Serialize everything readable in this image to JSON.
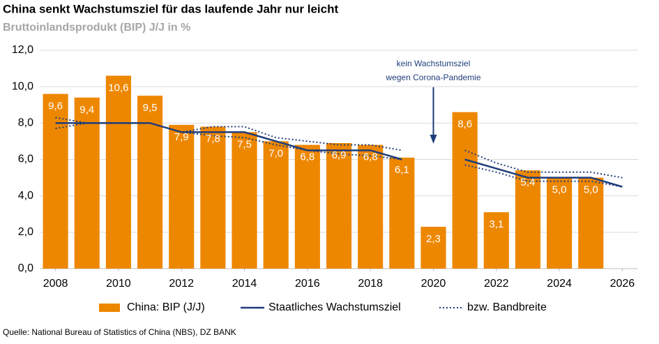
{
  "chart_data": {
    "type": "bar",
    "title": "China senkt Wachstumsziel für das laufende Jahr nur leicht",
    "subtitle": "Bruttoinlandsprodukt (BIP) J/J in %",
    "source": "Quelle: National Bureau of Statistics of China (NBS), DZ BANK",
    "annotation": {
      "text": [
        "kein Wachstumsziel",
        "wegen Corona-Pandemie"
      ],
      "x": 2020
    },
    "x": [
      2008,
      2009,
      2010,
      2011,
      2012,
      2013,
      2014,
      2015,
      2016,
      2017,
      2018,
      2019,
      2020,
      2021,
      2022,
      2023,
      2024,
      2025,
      2026
    ],
    "xlim": [
      2007.5,
      2026.5
    ],
    "xticks": [
      2008,
      2010,
      2012,
      2014,
      2016,
      2018,
      2020,
      2022,
      2024,
      2026
    ],
    "ylim": [
      0,
      12
    ],
    "yticks": [
      {
        "value": 0,
        "label": "0,0"
      },
      {
        "value": 2,
        "label": "2,0"
      },
      {
        "value": 4,
        "label": "4,0"
      },
      {
        "value": 6,
        "label": "6,0"
      },
      {
        "value": 8,
        "label": "8,0"
      },
      {
        "value": 10,
        "label": "10,0"
      },
      {
        "value": 12,
        "label": "12,0"
      }
    ],
    "grid": true,
    "series": [
      {
        "name": "China: BIP (J/J)",
        "type": "bar",
        "color": "#ee8700",
        "values": [
          9.6,
          9.4,
          10.6,
          9.5,
          7.9,
          7.8,
          7.5,
          7.0,
          6.8,
          6.9,
          6.8,
          6.1,
          2.3,
          8.6,
          3.1,
          5.4,
          5.0,
          5.0,
          null
        ],
        "value_labels": [
          "9,6",
          "9,4",
          "10,6",
          "9,5",
          "7,9",
          "7,8",
          "7,5",
          "7,0",
          "6,8",
          "6,9",
          "6,8",
          "6,1",
          "2,3",
          "8,6",
          "3,1",
          "5,4",
          "5,0",
          "5,0",
          null
        ]
      },
      {
        "name": "Staatliches Wachstumsziel",
        "type": "line",
        "color": "#1f3d7a",
        "values": [
          8.0,
          8.0,
          8.0,
          8.0,
          7.5,
          7.5,
          7.5,
          7.0,
          6.5,
          6.5,
          6.5,
          6.0,
          null,
          6.0,
          5.5,
          5.0,
          5.0,
          5.0,
          4.5
        ]
      },
      {
        "name": "bzw. Bandbreite",
        "type": "band",
        "color": "#1f3d7a",
        "values": [
          8.3,
          8.0,
          8.0,
          8.0,
          7.5,
          7.8,
          7.8,
          7.2,
          7.0,
          6.8,
          6.8,
          6.5,
          null,
          6.5,
          5.8,
          5.3,
          5.3,
          5.3,
          5.0
        ],
        "lower": [
          7.7,
          8.0,
          8.0,
          8.0,
          7.5,
          7.3,
          7.2,
          6.8,
          6.5,
          6.3,
          6.2,
          6.0,
          null,
          5.7,
          5.3,
          4.8,
          4.8,
          4.8,
          4.5
        ]
      }
    ]
  }
}
